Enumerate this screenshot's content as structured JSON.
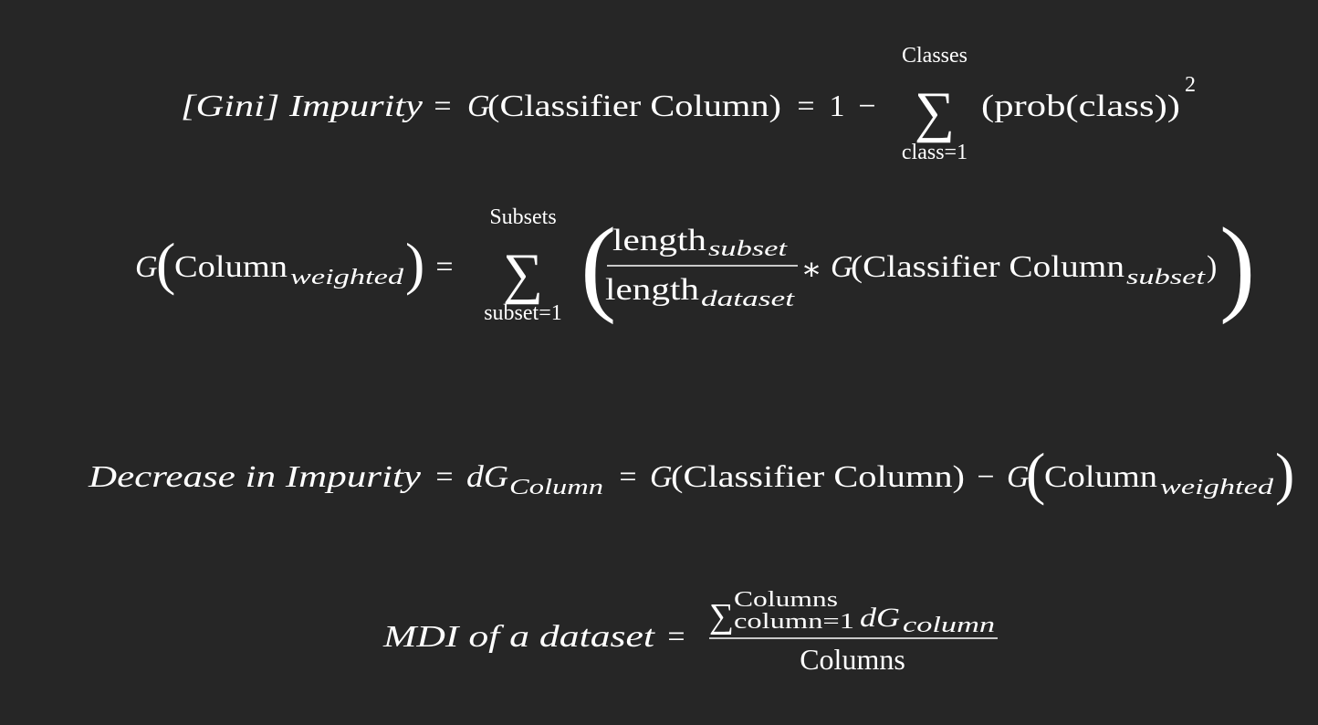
{
  "equations": [
    {
      "parts": [
        "[Gini] Impurity",
        "=",
        "G",
        "(Classifier Column)",
        "=",
        "1",
        "−",
        "Classes",
        "∑",
        "class=1",
        "(prob(class))",
        "2"
      ]
    },
    {
      "parts": [
        "G",
        "(",
        "Column",
        "weighted",
        ")",
        "=",
        "Subsets",
        "∑",
        "subset=1",
        "(",
        "length",
        "subset",
        "length",
        "dataset",
        "∗",
        "G",
        "(Classifier Column",
        "subset",
        ")",
        ")"
      ]
    },
    {
      "parts": [
        "Decrease in Impurity",
        "=",
        "dG",
        "Column",
        "=",
        "G",
        "(Classifier Column)",
        "−",
        "G",
        "(",
        "Column",
        "weighted",
        ")"
      ]
    },
    {
      "parts": [
        "MDI of a dataset",
        "=",
        "∑",
        "Columns",
        "column=1",
        "dG",
        "column",
        "Columns"
      ]
    }
  ]
}
